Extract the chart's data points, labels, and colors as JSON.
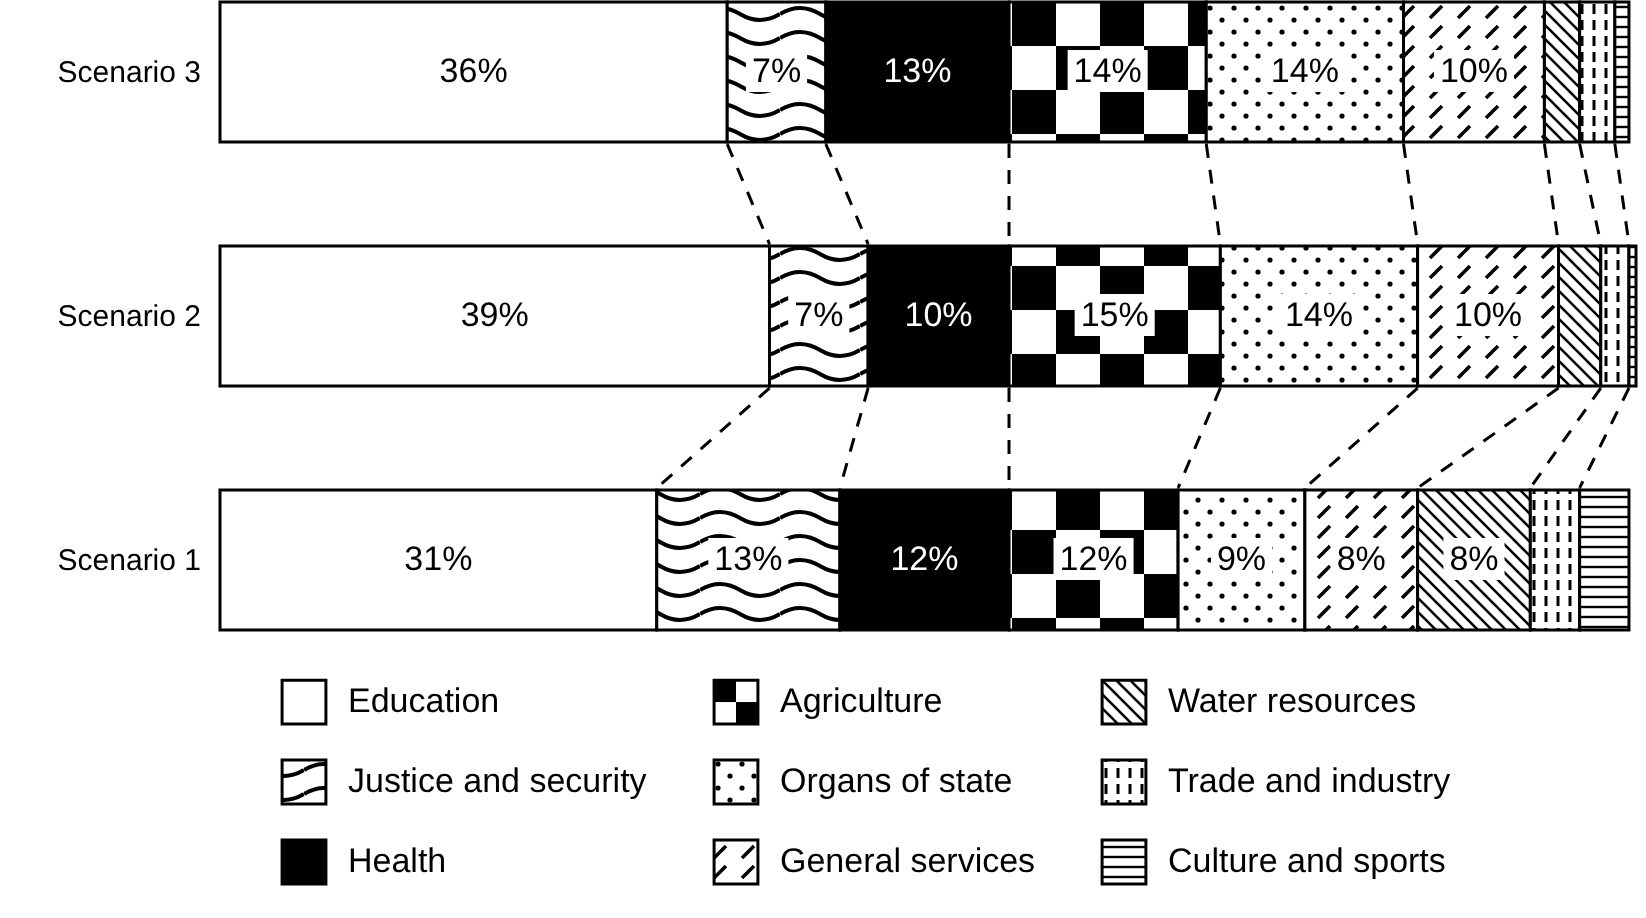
{
  "chart_data": {
    "type": "bar",
    "orientation": "horizontal",
    "stacked": true,
    "legend": "bottom",
    "categories": [
      "Scenario 3",
      "Scenario 2",
      "Scenario 1"
    ],
    "series": [
      {
        "name": "Education",
        "color": "#ffffff",
        "values": [
          36,
          39,
          31
        ],
        "value_labels": [
          "36%",
          "39%",
          "31%"
        ]
      },
      {
        "name": "Justice and security",
        "color": "#ffffff",
        "values": [
          7,
          7,
          13
        ],
        "value_labels": [
          "7%",
          "7%",
          "13%"
        ]
      },
      {
        "name": "Health",
        "color": "#000000",
        "values": [
          13,
          10,
          12
        ],
        "value_labels": [
          "13%",
          "10%",
          "12%"
        ]
      },
      {
        "name": "Agriculture",
        "color": "#ffffff",
        "values": [
          14,
          15,
          12
        ],
        "value_labels": [
          "14%",
          "15%",
          "12%"
        ]
      },
      {
        "name": "Organs of state",
        "color": "#ffffff",
        "values": [
          14,
          14,
          9
        ],
        "value_labels": [
          "14%",
          "14%",
          "9%"
        ]
      },
      {
        "name": "General services",
        "color": "#ffffff",
        "values": [
          10,
          10,
          8
        ],
        "value_labels": [
          "10%",
          "10%",
          "8%"
        ]
      },
      {
        "name": "Water resources",
        "color": "#ffffff",
        "values": [
          2.5,
          3,
          8
        ],
        "value_labels": [
          null,
          null,
          "8%"
        ]
      },
      {
        "name": "Trade and industry",
        "color": "#ffffff",
        "values": [
          2.5,
          2,
          3.5
        ],
        "value_labels": [
          null,
          null,
          null
        ]
      },
      {
        "name": "Culture and sports",
        "color": "#ffffff",
        "values": [
          1,
          0.5,
          3.5
        ],
        "value_labels": [
          null,
          null,
          null
        ]
      }
    ]
  }
}
